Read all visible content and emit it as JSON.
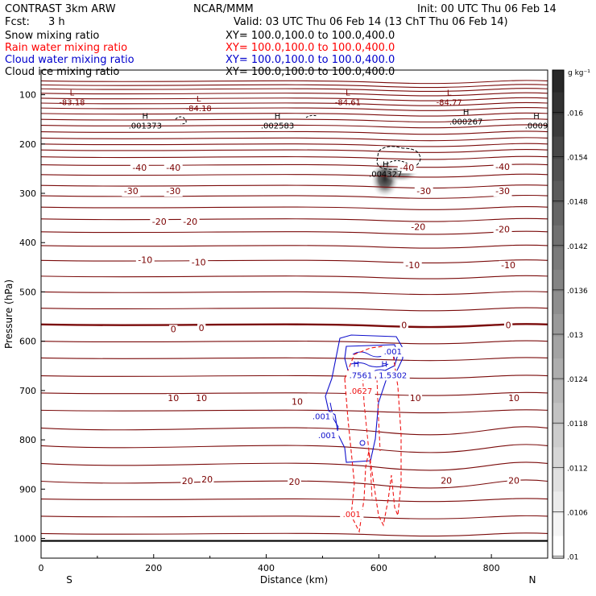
{
  "header": {
    "model": "CONTRAST  3km ARW",
    "center": "NCAR/MMM",
    "init": "Init: 00 UTC Thu 06 Feb 14",
    "fcst_label": "Fcst:",
    "fcst_value": "3 h",
    "valid": "Valid: 03 UTC Thu 06 Feb 14 (13 ChT Thu 06 Feb 14)"
  },
  "legend": [
    {
      "name": "Snow mixing ratio",
      "xy": "XY= 100.0,100.0 to 100.0,400.0",
      "color": "#000000"
    },
    {
      "name": "Rain water mixing ratio",
      "xy": "XY= 100.0,100.0 to 100.0,400.0",
      "color": "#ff0000"
    },
    {
      "name": "Cloud water mixing ratio",
      "xy": "XY= 100.0,100.0 to 100.0,400.0",
      "color": "#0000cc"
    },
    {
      "name": "Cloud ice mixing ratio",
      "xy": "XY= 100.0,100.0 to 100.0,400.0",
      "color": "#000000"
    }
  ],
  "colorbar": {
    "unit": "g kg⁻¹",
    "labels": [
      ".016",
      ".0154",
      ".0148",
      ".0142",
      ".0136",
      ".013",
      ".0124",
      ".0118",
      ".0112",
      ".0106",
      ".01"
    ]
  },
  "chart_data": {
    "type": "contour cross-section",
    "xlabel": "Distance (km)",
    "ylabel": "Pressure (hPa)",
    "xlim": [
      0,
      900
    ],
    "ylim": [
      1040,
      50
    ],
    "x_ticks": [
      0,
      200,
      400,
      600,
      800
    ],
    "x_tick_labels": [
      "0",
      "200",
      "400",
      "600",
      "800"
    ],
    "y_ticks": [
      100,
      200,
      300,
      400,
      500,
      600,
      700,
      800,
      900,
      1000
    ],
    "y_tick_labels": [
      "100",
      "200",
      "300",
      "400",
      "500",
      "600",
      "700",
      "800",
      "900",
      "1000"
    ],
    "end_labels": {
      "left": "S",
      "right": "N"
    },
    "highs_lows": [
      {
        "type": "L",
        "value": "-83.18",
        "x": 55,
        "p": 118
      },
      {
        "type": "L",
        "value": "-84.18",
        "x": 280,
        "p": 130
      },
      {
        "type": "L",
        "value": "-84.61",
        "x": 545,
        "p": 118
      },
      {
        "type": "L",
        "value": "-84.77",
        "x": 725,
        "p": 118
      },
      {
        "type": "H",
        "value": ".001373",
        "x": 185,
        "p": 165
      },
      {
        "type": "H",
        "value": ".002583",
        "x": 420,
        "p": 165
      },
      {
        "type": "H",
        "value": ".000267",
        "x": 755,
        "p": 157
      },
      {
        "type": "H",
        "value": ".0009",
        "x": 880,
        "p": 165
      },
      {
        "type": "H",
        "value": ".004327",
        "x": 612,
        "p": 263
      }
    ],
    "temperature_labels": [
      {
        "text": "-40",
        "x": 175,
        "p": 248
      },
      {
        "text": "-40",
        "x": 235,
        "p": 248
      },
      {
        "text": "-40",
        "x": 650,
        "p": 248
      },
      {
        "text": "-40",
        "x": 820,
        "p": 246
      },
      {
        "text": "-30",
        "x": 160,
        "p": 295
      },
      {
        "text": "-30",
        "x": 235,
        "p": 295
      },
      {
        "text": "-30",
        "x": 680,
        "p": 295
      },
      {
        "text": "-30",
        "x": 820,
        "p": 295
      },
      {
        "text": "-20",
        "x": 210,
        "p": 357
      },
      {
        "text": "-20",
        "x": 265,
        "p": 357
      },
      {
        "text": "-20",
        "x": 670,
        "p": 368
      },
      {
        "text": "-20",
        "x": 820,
        "p": 373
      },
      {
        "text": "-10",
        "x": 185,
        "p": 435
      },
      {
        "text": "-10",
        "x": 280,
        "p": 440
      },
      {
        "text": "-10",
        "x": 660,
        "p": 445
      },
      {
        "text": "-10",
        "x": 830,
        "p": 445
      },
      {
        "text": "0",
        "x": 235,
        "p": 575
      },
      {
        "text": "0",
        "x": 285,
        "p": 573
      },
      {
        "text": "0",
        "x": 645,
        "p": 567
      },
      {
        "text": "0",
        "x": 830,
        "p": 567
      },
      {
        "text": "10",
        "x": 235,
        "p": 715
      },
      {
        "text": "10",
        "x": 285,
        "p": 715
      },
      {
        "text": "10",
        "x": 455,
        "p": 722
      },
      {
        "text": "10",
        "x": 665,
        "p": 715
      },
      {
        "text": "10",
        "x": 840,
        "p": 715
      },
      {
        "text": "20",
        "x": 260,
        "p": 883
      },
      {
        "text": "20",
        "x": 295,
        "p": 880
      },
      {
        "text": "20",
        "x": 450,
        "p": 885
      },
      {
        "text": "20",
        "x": 720,
        "p": 882
      },
      {
        "text": "20",
        "x": 840,
        "p": 882
      }
    ],
    "cloud_water_labels": [
      {
        "text": ".001",
        "x": 625,
        "p": 620
      },
      {
        "text": ".7561",
        "x": 568,
        "p": 668
      },
      {
        "text": "1.5302",
        "x": 625,
        "p": 668
      },
      {
        "text": ".001",
        "x": 498,
        "p": 752
      },
      {
        "text": ".001",
        "x": 508,
        "p": 790
      }
    ],
    "rain_labels": [
      {
        "text": ".0627",
        "x": 568,
        "p": 700
      },
      {
        "text": ".001",
        "x": 552,
        "p": 950
      }
    ]
  }
}
